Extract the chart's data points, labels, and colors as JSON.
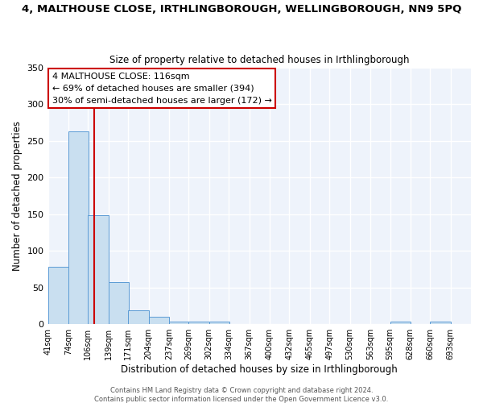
{
  "title": "4, MALTHOUSE CLOSE, IRTHLINGBOROUGH, WELLINGBOROUGH, NN9 5PQ",
  "subtitle": "Size of property relative to detached houses in Irthlingborough",
  "xlabel": "Distribution of detached houses by size in Irthlingborough",
  "ylabel": "Number of detached properties",
  "bin_edges": [
    41,
    74,
    106,
    139,
    171,
    204,
    237,
    269,
    302,
    334,
    367,
    400,
    432,
    465,
    497,
    530,
    563,
    595,
    628,
    660,
    693
  ],
  "bar_heights": [
    78,
    263,
    148,
    57,
    19,
    10,
    4,
    4,
    4,
    0,
    0,
    0,
    0,
    0,
    0,
    0,
    0,
    3,
    0,
    3
  ],
  "bar_color": "#c9dff0",
  "bar_edge_color": "#5b9bd5",
  "red_line_x": 116,
  "red_line_color": "#cc0000",
  "annotation_line1": "4 MALTHOUSE CLOSE: 116sqm",
  "annotation_line2": "← 69% of detached houses are smaller (394)",
  "annotation_line3": "30% of semi-detached houses are larger (172) →",
  "ylim": [
    0,
    350
  ],
  "yticks": [
    0,
    50,
    100,
    150,
    200,
    250,
    300,
    350
  ],
  "bg_color": "#eef3fb",
  "grid_color": "#ffffff",
  "footer_text": "Contains HM Land Registry data © Crown copyright and database right 2024.\nContains public sector information licensed under the Open Government Licence v3.0.",
  "title_fontsize": 9.5,
  "subtitle_fontsize": 8.5,
  "xlabel_fontsize": 8.5,
  "ylabel_fontsize": 8.5,
  "annotation_fontsize": 8,
  "tick_fontsize": 7,
  "footer_fontsize": 6
}
